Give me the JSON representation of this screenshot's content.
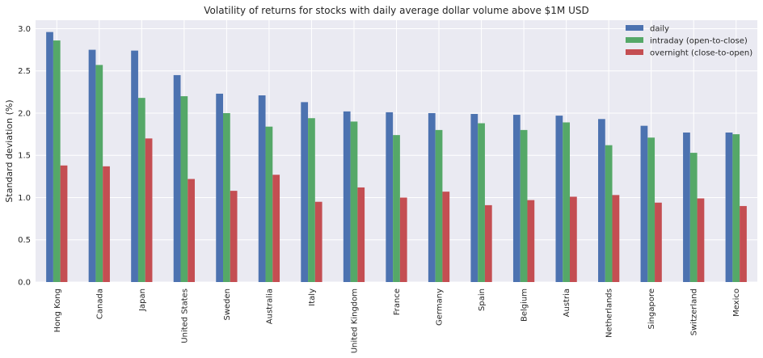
{
  "chart_data": {
    "type": "bar",
    "title": "Volatility of returns for stocks with daily average dollar volume above $1M USD",
    "xlabel": "",
    "ylabel": "Standard deviation (%)",
    "ylim": [
      0,
      3.1
    ],
    "yticks": [
      0.0,
      0.5,
      1.0,
      1.5,
      2.0,
      2.5,
      3.0
    ],
    "ytick_labels": [
      "0.0",
      "0.5",
      "1.0",
      "1.5",
      "2.0",
      "2.5",
      "3.0"
    ],
    "grid": true,
    "legend_position": "top-right",
    "categories": [
      "Hong Kong",
      "Canada",
      "Japan",
      "United States",
      "Sweden",
      "Australia",
      "Italy",
      "United Kingdom",
      "France",
      "Germany",
      "Spain",
      "Belgium",
      "Austria",
      "Netherlands",
      "Singapore",
      "Switzerland",
      "Mexico"
    ],
    "series": [
      {
        "name": "daily",
        "color": "#4c72b0",
        "values": [
          2.96,
          2.75,
          2.74,
          2.45,
          2.23,
          2.21,
          2.13,
          2.02,
          2.01,
          2.0,
          1.99,
          1.98,
          1.97,
          1.93,
          1.85,
          1.77,
          1.77
        ]
      },
      {
        "name": "intraday (open-to-close)",
        "color": "#55a868",
        "values": [
          2.86,
          2.57,
          2.18,
          2.2,
          2.0,
          1.84,
          1.94,
          1.9,
          1.74,
          1.8,
          1.88,
          1.8,
          1.89,
          1.62,
          1.71,
          1.53,
          1.75
        ]
      },
      {
        "name": "overnight (close-to-open)",
        "color": "#c44e52",
        "values": [
          1.38,
          1.37,
          1.7,
          1.22,
          1.08,
          1.27,
          0.95,
          1.12,
          1.0,
          1.07,
          0.91,
          0.97,
          1.01,
          1.03,
          0.94,
          0.99,
          0.9
        ]
      }
    ],
    "colors": {
      "plot_background": "#eaeaf2",
      "grid": "#ffffff"
    }
  }
}
